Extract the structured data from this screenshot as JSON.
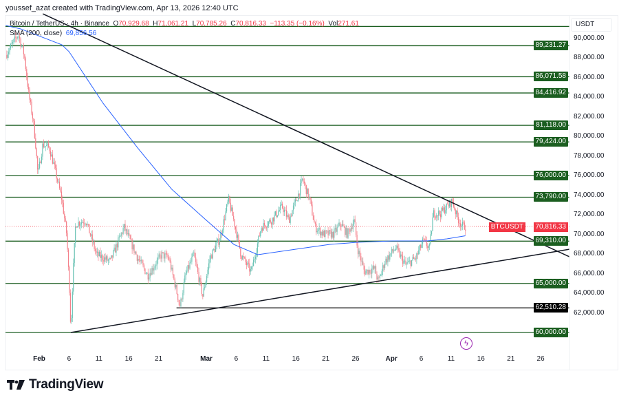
{
  "credit": "youssef_azat created with TradingView.com, Apr 13, 2026 12:40 UTC",
  "legend": {
    "symbol": "Bitcoin / TetherUS · 4h · Binance",
    "o_label": "O",
    "o": "70,929.68",
    "h_label": "H",
    "h": "71,061.21",
    "l_label": "L",
    "l": "70,785.26",
    "c_label": "C",
    "c": "70,816.33",
    "change": "−113.35 (−0.16%)",
    "vol_label": "Vol",
    "vol": "271.61",
    "sma_label": "SMA (200, close)",
    "sma_value": "69,856.56"
  },
  "currency": "USDT",
  "current": {
    "symbol": "BTCUSDT",
    "price": "70,816.33",
    "value": 70816.33
  },
  "logo": "TradingView",
  "colors": {
    "level": "#1b5e20",
    "up": "#6cc3b5",
    "down": "#f47f89",
    "sma": "#2962ff",
    "trend": "#131722",
    "current": "#f23645"
  },
  "chart_data": {
    "type": "candlestick",
    "timeframe": "4h",
    "x_unit": "days from Feb 1",
    "price_ticks": [
      "90,000.00",
      "88,000.00",
      "86,000.00",
      "84,000.00",
      "82,000.00",
      "80,000.00",
      "78,000.00",
      "76,000.00",
      "74,000.00",
      "72,000.00",
      "70,000.00",
      "68,000.00",
      "66,000.00",
      "64,000.00",
      "62,000.00"
    ],
    "price_tick_values": [
      90000,
      88000,
      86000,
      84000,
      82000,
      80000,
      78000,
      76000,
      74000,
      72000,
      70000,
      68000,
      66000,
      64000,
      62000
    ],
    "time_labels": [
      {
        "label": "Feb",
        "day": 0,
        "bold": true
      },
      {
        "label": "6",
        "day": 5
      },
      {
        "label": "11",
        "day": 10
      },
      {
        "label": "16",
        "day": 15
      },
      {
        "label": "21",
        "day": 20
      },
      {
        "label": "Mar",
        "day": 28,
        "bold": true
      },
      {
        "label": "6",
        "day": 33
      },
      {
        "label": "11",
        "day": 38
      },
      {
        "label": "16",
        "day": 43
      },
      {
        "label": "21",
        "day": 48
      },
      {
        "label": "26",
        "day": 53
      },
      {
        "label": "Apr",
        "day": 59,
        "bold": true
      },
      {
        "label": "6",
        "day": 64
      },
      {
        "label": "11",
        "day": 69
      },
      {
        "label": "16",
        "day": 74
      },
      {
        "label": "21",
        "day": 79
      },
      {
        "label": "26",
        "day": 84
      }
    ],
    "levels": [
      {
        "value": 91200,
        "label": ""
      },
      {
        "value": 89231.27,
        "label": "89,231.27"
      },
      {
        "value": 86071.58,
        "label": "86,071.58"
      },
      {
        "value": 84416.92,
        "label": "84,416.92"
      },
      {
        "value": 81118.0,
        "label": "81,118.00"
      },
      {
        "value": 79424.0,
        "label": "79,424.00"
      },
      {
        "value": 76000.0,
        "label": "76,000.00"
      },
      {
        "value": 73790.0,
        "label": "73,790.00"
      },
      {
        "value": 69310.0,
        "label": "69,310.00"
      },
      {
        "value": 65000.0,
        "label": "65,000.00"
      },
      {
        "value": 60000.0,
        "label": "60,000.00"
      }
    ],
    "black_level": {
      "value": 62510.28,
      "label": "62,510.28",
      "from_day": 23.0
    },
    "trendlines": [
      {
        "name": "descending-trendline",
        "p1": [
          0.6,
          92490
        ],
        "p2": [
          88.8,
          67720
        ]
      },
      {
        "name": "ascending-trendline",
        "p1": [
          5.3,
          60000
        ],
        "p2": [
          88.8,
          68480
        ]
      }
    ],
    "price_path": [
      [
        -5.6,
        88280
      ],
      [
        -3.5,
        90390
      ],
      [
        -2.5,
        88280
      ],
      [
        -1.7,
        84070
      ],
      [
        -1.0,
        81610
      ],
      [
        -0.6,
        79160
      ],
      [
        -0.2,
        76000
      ],
      [
        0.6,
        79160
      ],
      [
        1.7,
        78810
      ],
      [
        2.6,
        76700
      ],
      [
        3.8,
        73540
      ],
      [
        4.6,
        70030
      ],
      [
        5.1,
        64060
      ],
      [
        5.3,
        60000
      ],
      [
        5.6,
        65120
      ],
      [
        6.1,
        71090
      ],
      [
        7.8,
        71440
      ],
      [
        9.6,
        67930
      ],
      [
        11.9,
        67230
      ],
      [
        14.2,
        70740
      ],
      [
        16.5,
        67580
      ],
      [
        18.2,
        65820
      ],
      [
        20.5,
        67930
      ],
      [
        21.7,
        67580
      ],
      [
        22.8,
        64770
      ],
      [
        23.6,
        62660
      ],
      [
        24.5,
        65820
      ],
      [
        25.9,
        67930
      ],
      [
        27.4,
        63720
      ],
      [
        28.6,
        67580
      ],
      [
        30.3,
        69630
      ],
      [
        31.7,
        73540
      ],
      [
        32.6,
        71440
      ],
      [
        33.8,
        67930
      ],
      [
        35.5,
        66170
      ],
      [
        37.2,
        70740
      ],
      [
        38.9,
        71440
      ],
      [
        40.7,
        72840
      ],
      [
        41.8,
        71440
      ],
      [
        43.5,
        74250
      ],
      [
        44.1,
        75650
      ],
      [
        45.3,
        73540
      ],
      [
        46.2,
        70740
      ],
      [
        47.6,
        70030
      ],
      [
        49.3,
        70030
      ],
      [
        50.5,
        71090
      ],
      [
        51.6,
        70030
      ],
      [
        52.8,
        71440
      ],
      [
        53.3,
        68630
      ],
      [
        54.5,
        66170
      ],
      [
        56.2,
        66520
      ],
      [
        56.8,
        65120
      ],
      [
        57.9,
        67230
      ],
      [
        59.7,
        68630
      ],
      [
        61.4,
        66870
      ],
      [
        63.1,
        67580
      ],
      [
        64.3,
        69320
      ],
      [
        65.4,
        68630
      ],
      [
        66.0,
        72140
      ],
      [
        67.2,
        72140
      ],
      [
        68.3,
        72840
      ],
      [
        69.2,
        73400
      ],
      [
        70.0,
        71790
      ],
      [
        70.8,
        70880
      ],
      [
        71.4,
        70816
      ]
    ],
    "sma_200": [
      [
        -5.6,
        91300
      ],
      [
        -3.1,
        90950
      ],
      [
        3.8,
        89330
      ],
      [
        5.0,
        88630
      ],
      [
        10.7,
        83370
      ],
      [
        16.5,
        78810
      ],
      [
        22.2,
        74600
      ],
      [
        28.0,
        71440
      ],
      [
        32.6,
        68980
      ],
      [
        36.6,
        67930
      ],
      [
        43.0,
        68490
      ],
      [
        48.7,
        68980
      ],
      [
        53.3,
        69190
      ],
      [
        59.1,
        69330
      ],
      [
        64.9,
        69330
      ],
      [
        68.3,
        69540
      ],
      [
        71.4,
        69857
      ]
    ]
  }
}
